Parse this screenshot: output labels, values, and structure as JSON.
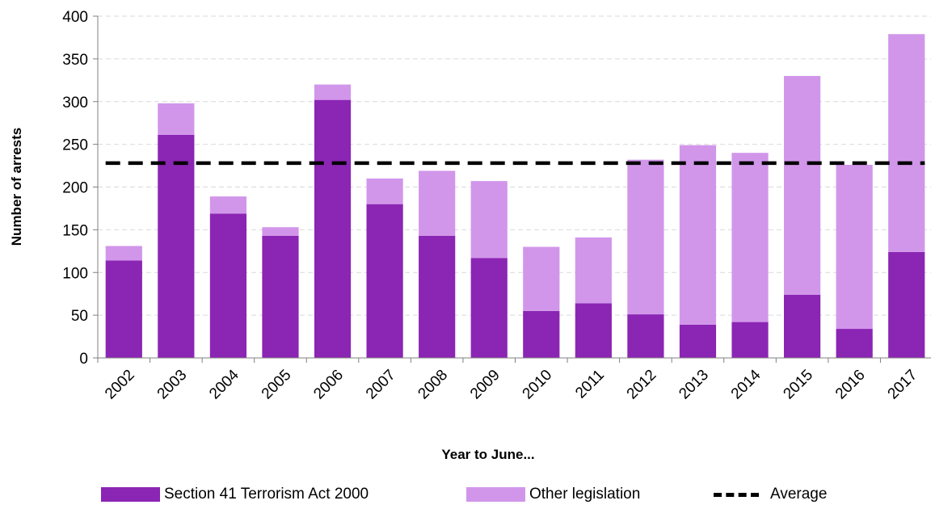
{
  "chart_data": {
    "type": "bar",
    "stacked": true,
    "categories": [
      "2002",
      "2003",
      "2004",
      "2005",
      "2006",
      "2007",
      "2008",
      "2009",
      "2010",
      "2011",
      "2012",
      "2013",
      "2014",
      "2015",
      "2016",
      "2017"
    ],
    "series": [
      {
        "name": "Section 41 Terrorism Act 2000",
        "color": "#8b25b4",
        "values": [
          114,
          261,
          169,
          143,
          302,
          180,
          143,
          117,
          55,
          64,
          51,
          39,
          42,
          74,
          34,
          124
        ]
      },
      {
        "name": "Other legislation",
        "color": "#d196ea",
        "values": [
          17,
          37,
          20,
          10,
          18,
          30,
          76,
          90,
          75,
          77,
          181,
          210,
          198,
          256,
          192,
          255
        ]
      }
    ],
    "average": {
      "name": "Average",
      "value": 228,
      "color": "#000000"
    },
    "xlabel": "Year to June...",
    "ylabel": "Number of arrests",
    "ylim": [
      0,
      400
    ],
    "yticks": [
      0,
      50,
      100,
      150,
      200,
      250,
      300,
      350,
      400
    ],
    "grid": true,
    "legend_position": "bottom"
  }
}
